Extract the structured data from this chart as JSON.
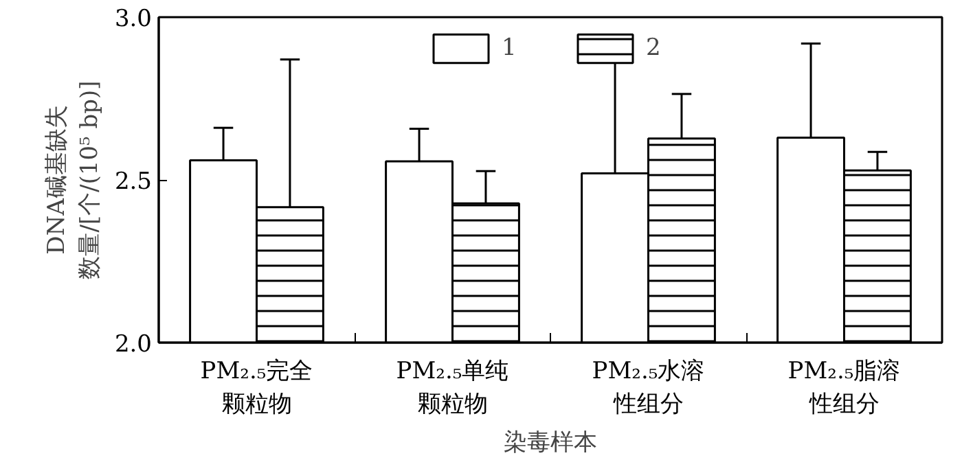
{
  "chart_data": {
    "type": "bar",
    "xlabel": "染毒样本",
    "ylabel": "DNA碱基缺失数量/[个/(10⁵ bp)]",
    "categories": [
      "PM₂.₅完全颗粒物",
      "PM₂.₅单纯颗粒物",
      "PM₂.₅水溶性组分",
      "PM₂.₅脂溶性组分"
    ],
    "series": [
      {
        "name": "1",
        "color": "#ffffff",
        "values": [
          2.56,
          2.557,
          2.52,
          2.63
        ],
        "errors": [
          [
            2.56,
            2.66
          ],
          [
            2.557,
            2.657
          ],
          [
            2.52,
            2.864
          ],
          [
            2.63,
            2.919
          ]
        ]
      },
      {
        "name": "2",
        "color": "#ffffff",
        "values": [
          2.416,
          2.428,
          2.627,
          2.529
        ],
        "errors": [
          [
            2.416,
            2.87
          ],
          [
            2.428,
            2.527
          ],
          [
            2.627,
            2.764
          ],
          [
            2.529,
            2.586
          ]
        ]
      }
    ],
    "ylim": [
      2.0,
      3.0
    ],
    "yticks": [
      {
        "value": 2.0,
        "label": "2.0"
      },
      {
        "value": 2.5,
        "label": "2.5"
      },
      {
        "value": 3.0,
        "label": "3.0"
      }
    ],
    "grid": false,
    "legend": "top"
  }
}
